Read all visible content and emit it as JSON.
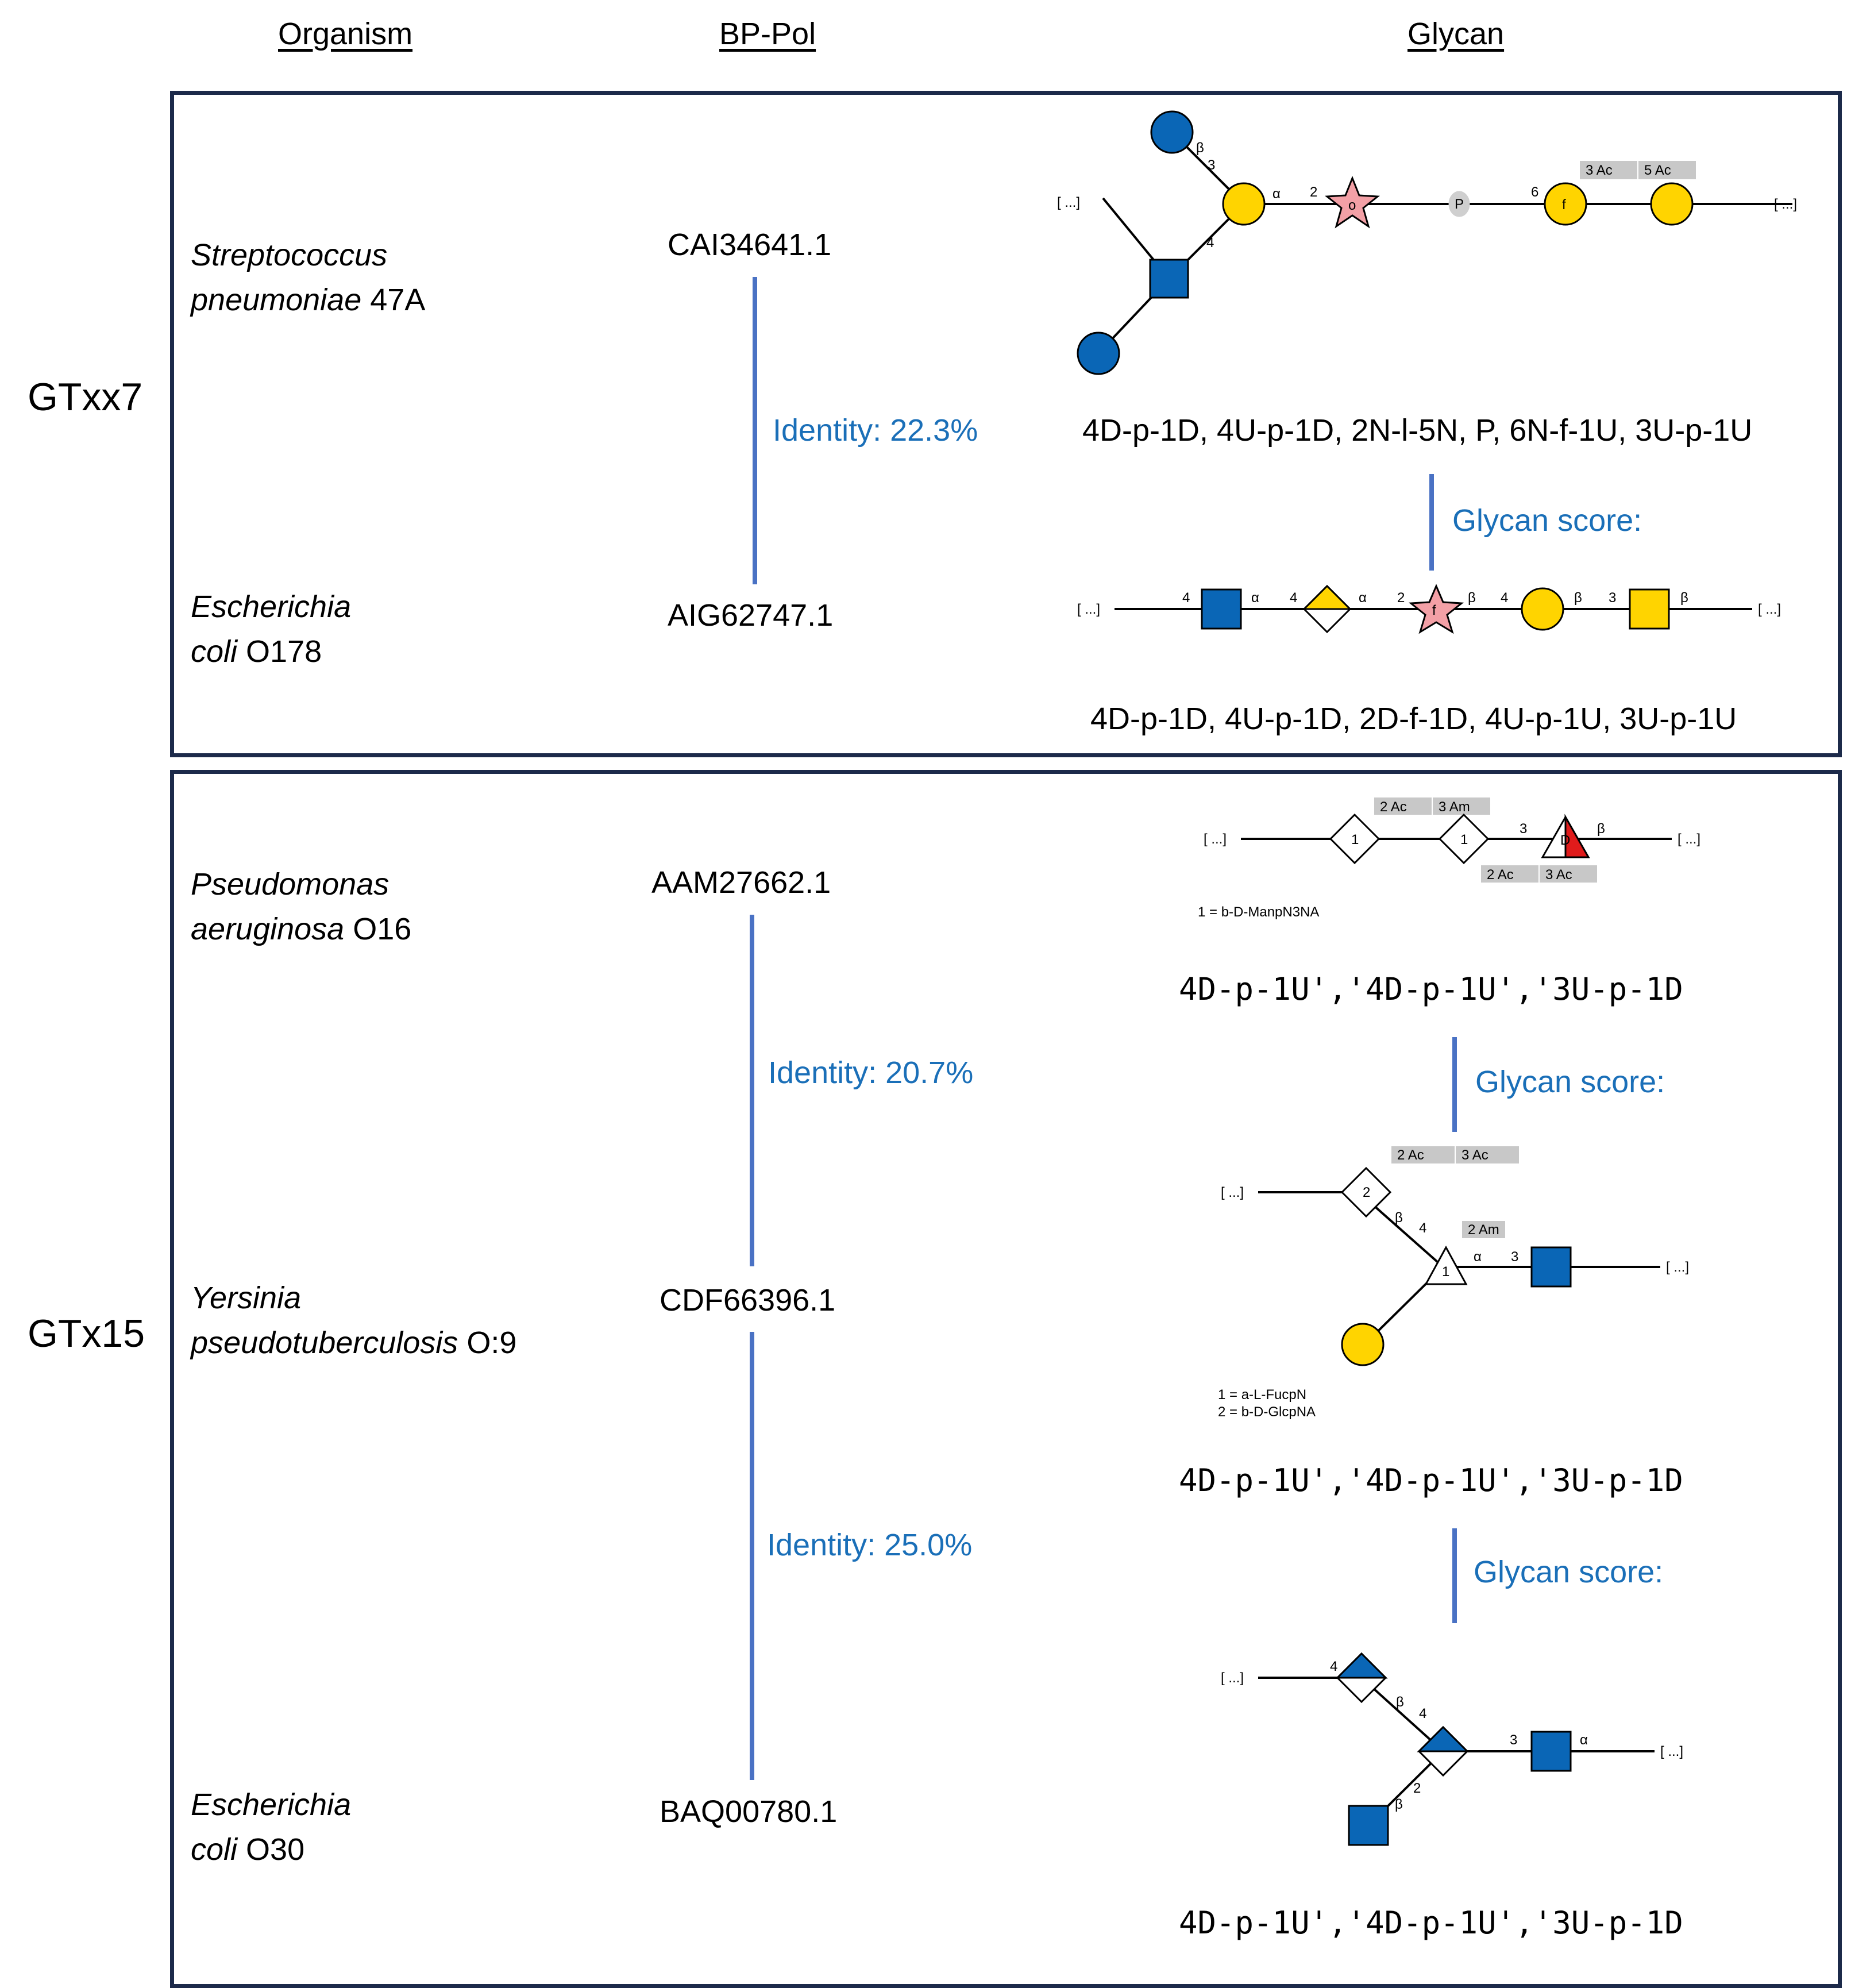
{
  "headers": {
    "organism": "Organism",
    "bppol": "BP-Pol",
    "glycan": "Glycan"
  },
  "groups": [
    {
      "label": "GTxx7",
      "organisms": [
        {
          "genus": "Streptococcus",
          "species": "pneumoniae",
          "strain": "47A",
          "accession": "CAI34641.1"
        },
        {
          "genus": "Escherichia",
          "species": "coli",
          "strain": "O178",
          "accession": "AIG62747.1"
        }
      ],
      "identities": [
        "Identity: 22.3%"
      ],
      "glycan_codes": [
        "4D-p-1D, 4U-p-1D, 2N-l-5N, P, 6N-f-1U, 3U-p-1U",
        "4D-p-1D, 4U-p-1D, 2D-f-1D, 4U-p-1U, 3U-p-1U"
      ],
      "glycan_scores": [
        "Glycan score:"
      ]
    },
    {
      "label": "GTx15",
      "organisms": [
        {
          "genus": "Pseudomonas",
          "species": "aeruginosa",
          "strain": "O16",
          "accession": "AAM27662.1"
        },
        {
          "genus": "Yersinia",
          "species": "pseudotuberculosis",
          "strain": "O:9",
          "accession": "CDF66396.1"
        },
        {
          "genus": "Escherichia",
          "species": "coli",
          "strain": "O30",
          "accession": "BAQ00780.1"
        }
      ],
      "identities": [
        "Identity: 20.7%",
        "Identity: 25.0%"
      ],
      "glycan_codes": [
        "4D-p-1U','4D-p-1U','3U-p-1D",
        "4D-p-1U','4D-p-1U','3U-p-1D",
        "4D-p-1U','4D-p-1U','3U-p-1D"
      ],
      "glycan_scores": [
        "Glycan score:",
        "Glycan score:"
      ]
    }
  ],
  "glycan_drawings": {
    "g1": {
      "labels": [
        "[ ...]",
        "[ ...]",
        "3 Ac",
        "5 Ac",
        "P",
        "o",
        "f",
        "β",
        "α",
        "2",
        "3",
        "4",
        "6"
      ]
    },
    "g2": {
      "labels": [
        "[ ...]",
        "[ ...]",
        "4",
        "α",
        "4",
        "α",
        "2",
        "f",
        "β",
        "4",
        "β",
        "3",
        "β"
      ]
    },
    "g3": {
      "labels": [
        "[ ...]",
        "[ ...]",
        "2 Ac",
        "3 Am",
        "2 Ac",
        "3 Ac",
        "1",
        "1",
        "D",
        "β",
        "3"
      ],
      "legend": [
        "1 = b-D-ManpN3NA"
      ]
    },
    "g4": {
      "labels": [
        "[ ...]",
        "[ ...]",
        "2 Ac",
        "3 Ac",
        "2 Am",
        "2",
        "1",
        "β",
        "4",
        "α",
        "3"
      ],
      "legend": [
        "1 = a-L-FucpN",
        "2 = b-D-GlcpNA"
      ]
    },
    "g5": {
      "labels": [
        "[ ...]",
        "[ ...]",
        "4",
        "β",
        "4",
        "3",
        "α",
        "2",
        "β"
      ]
    }
  },
  "colors": {
    "accent": "#1a6fb8",
    "line": "#4a72c4",
    "box": "#1c2a4a",
    "yellow": "#ffd400",
    "blue": "#0a66b6",
    "pink": "#f3a0a6",
    "red": "#e01b1b"
  }
}
